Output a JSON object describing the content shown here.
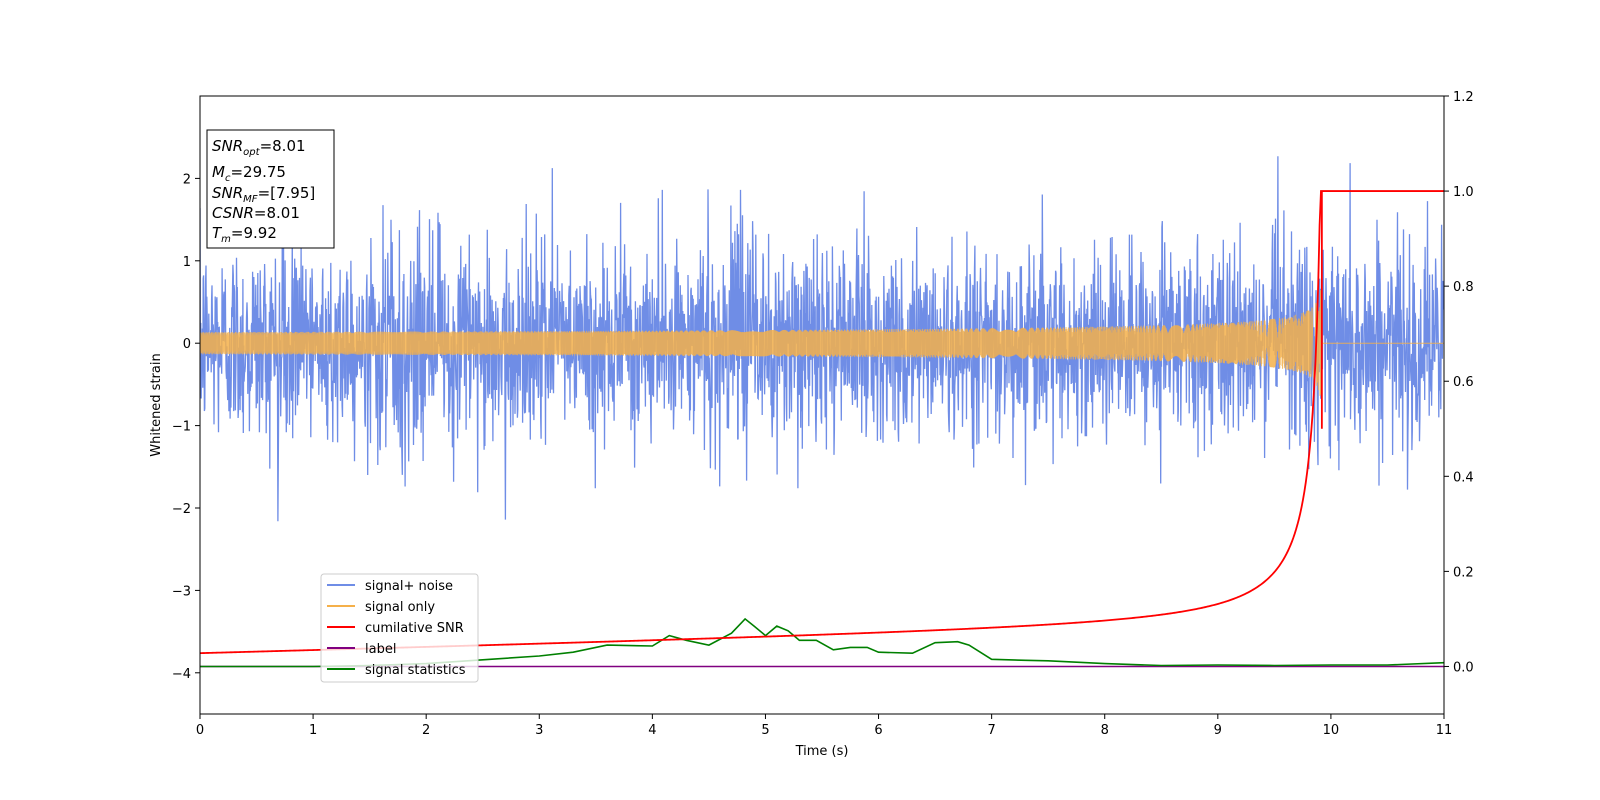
{
  "chart_data": {
    "type": "line",
    "xlabel": "Time (s)",
    "ylabel": "Whitened strain",
    "xlim": [
      0,
      11
    ],
    "ylim_left": [
      -4.5,
      3.0
    ],
    "ylim_right": [
      -0.1,
      1.2
    ],
    "x_ticks": [
      0,
      1,
      2,
      3,
      4,
      5,
      6,
      7,
      8,
      9,
      10,
      11
    ],
    "y_ticks_left": [
      -4,
      -3,
      -2,
      -1,
      0,
      1,
      2
    ],
    "y_ticks_right": [
      0.0,
      0.2,
      0.4,
      0.6,
      0.8,
      1.0,
      1.2
    ],
    "y_tick_labels_left": [
      "−4",
      "−3",
      "−2",
      "−1",
      "0",
      "1",
      "2"
    ],
    "y_tick_labels_right": [
      "0.0",
      "0.2",
      "0.4",
      "0.6",
      "0.8",
      "1.0",
      "1.2"
    ],
    "legend_position": "lower-left",
    "annotation": {
      "snr_opt": {
        "base": "SNR",
        "sub": "opt",
        "value": "=8.01"
      },
      "mc": {
        "base": "M",
        "sub": "c",
        "value": "=29.75"
      },
      "snr_mf": {
        "base": "SNR",
        "sub": "MF",
        "value": "=[7.95]"
      },
      "csnr": {
        "base": "CSNR",
        "sub": "",
        "value": "=8.01"
      },
      "tm": {
        "base": "T",
        "sub": "m",
        "value": "=9.92"
      }
    },
    "series": [
      {
        "name": "signal+ noise",
        "color": "#6f8de6",
        "axis": "left",
        "description_amplitude": 1.0,
        "range_min": -2.25,
        "range_max": 2.28
      },
      {
        "name": "signal only",
        "color": "#f5b04a",
        "axis": "left",
        "merger_time": 9.92,
        "peak_amplitude": 0.95
      },
      {
        "name": "cumilative SNR",
        "color": "#ff0000",
        "axis": "right",
        "x": [
          0,
          1,
          2,
          3,
          4,
          5,
          6,
          7,
          8,
          9,
          9.5,
          9.8,
          9.92,
          11
        ],
        "y": [
          0.028,
          0.036,
          0.045,
          0.056,
          0.068,
          0.082,
          0.1,
          0.124,
          0.16,
          0.23,
          0.32,
          0.48,
          1.0,
          1.0
        ]
      },
      {
        "name": "label",
        "color": "#800080",
        "axis": "right",
        "x": [
          0,
          11
        ],
        "y": [
          0,
          0
        ]
      },
      {
        "name": "signal statistics",
        "color": "#008000",
        "axis": "right",
        "x": [
          0,
          1,
          1.5,
          2,
          2.5,
          3,
          3.3,
          3.6,
          4.0,
          4.15,
          4.3,
          4.5,
          4.7,
          4.82,
          4.9,
          5.0,
          5.1,
          5.2,
          5.3,
          5.45,
          5.6,
          5.75,
          5.9,
          6.0,
          6.3,
          6.5,
          6.7,
          6.8,
          7.0,
          7.3,
          7.5,
          8.0,
          8.5,
          9.0,
          9.5,
          10.0,
          10.5,
          11.0
        ],
        "y": [
          0.0,
          0.0,
          0.002,
          0.006,
          0.014,
          0.022,
          0.03,
          0.045,
          0.043,
          0.065,
          0.055,
          0.045,
          0.07,
          0.1,
          0.085,
          0.065,
          0.085,
          0.075,
          0.055,
          0.055,
          0.035,
          0.04,
          0.04,
          0.03,
          0.028,
          0.05,
          0.052,
          0.045,
          0.015,
          0.013,
          0.012,
          0.006,
          0.002,
          0.003,
          0.002,
          0.003,
          0.003,
          0.008
        ]
      }
    ]
  }
}
